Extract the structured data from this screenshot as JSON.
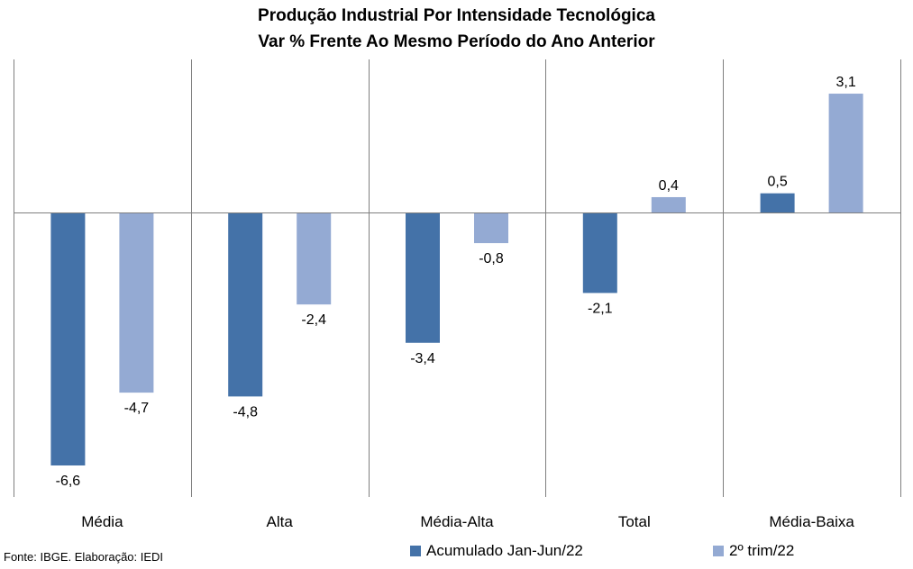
{
  "chart_data": {
    "type": "bar",
    "title": "Produção Industrial Por Intensidade Tecnológica",
    "subtitle": "Var % Frente Ao Mesmo Período do Ano Anterior",
    "categories": [
      "Média",
      "Alta",
      "Média-Alta",
      "Total",
      "Média-Baixa"
    ],
    "series": [
      {
        "name": "Acumulado Jan-Jun/22",
        "values": [
          -6.6,
          -4.8,
          -3.4,
          -2.1,
          0.5
        ],
        "labels": [
          "-6,6",
          "-4,8",
          "-3,4",
          "-2,1",
          "0,5"
        ],
        "color": "#4472a8"
      },
      {
        "name": "2º trim/22",
        "values": [
          -4.7,
          -2.4,
          -0.8,
          0.4,
          3.1
        ],
        "labels": [
          "-4,7",
          "-2,4",
          "-0,8",
          "0,4",
          "3,1"
        ],
        "color": "#94aad3"
      }
    ],
    "ylim": [
      -7.6,
      3.8
    ],
    "grid": "vertical separators",
    "legend": "bottom"
  },
  "source": "Fonte: IBGE. Elaboração: IEDI"
}
